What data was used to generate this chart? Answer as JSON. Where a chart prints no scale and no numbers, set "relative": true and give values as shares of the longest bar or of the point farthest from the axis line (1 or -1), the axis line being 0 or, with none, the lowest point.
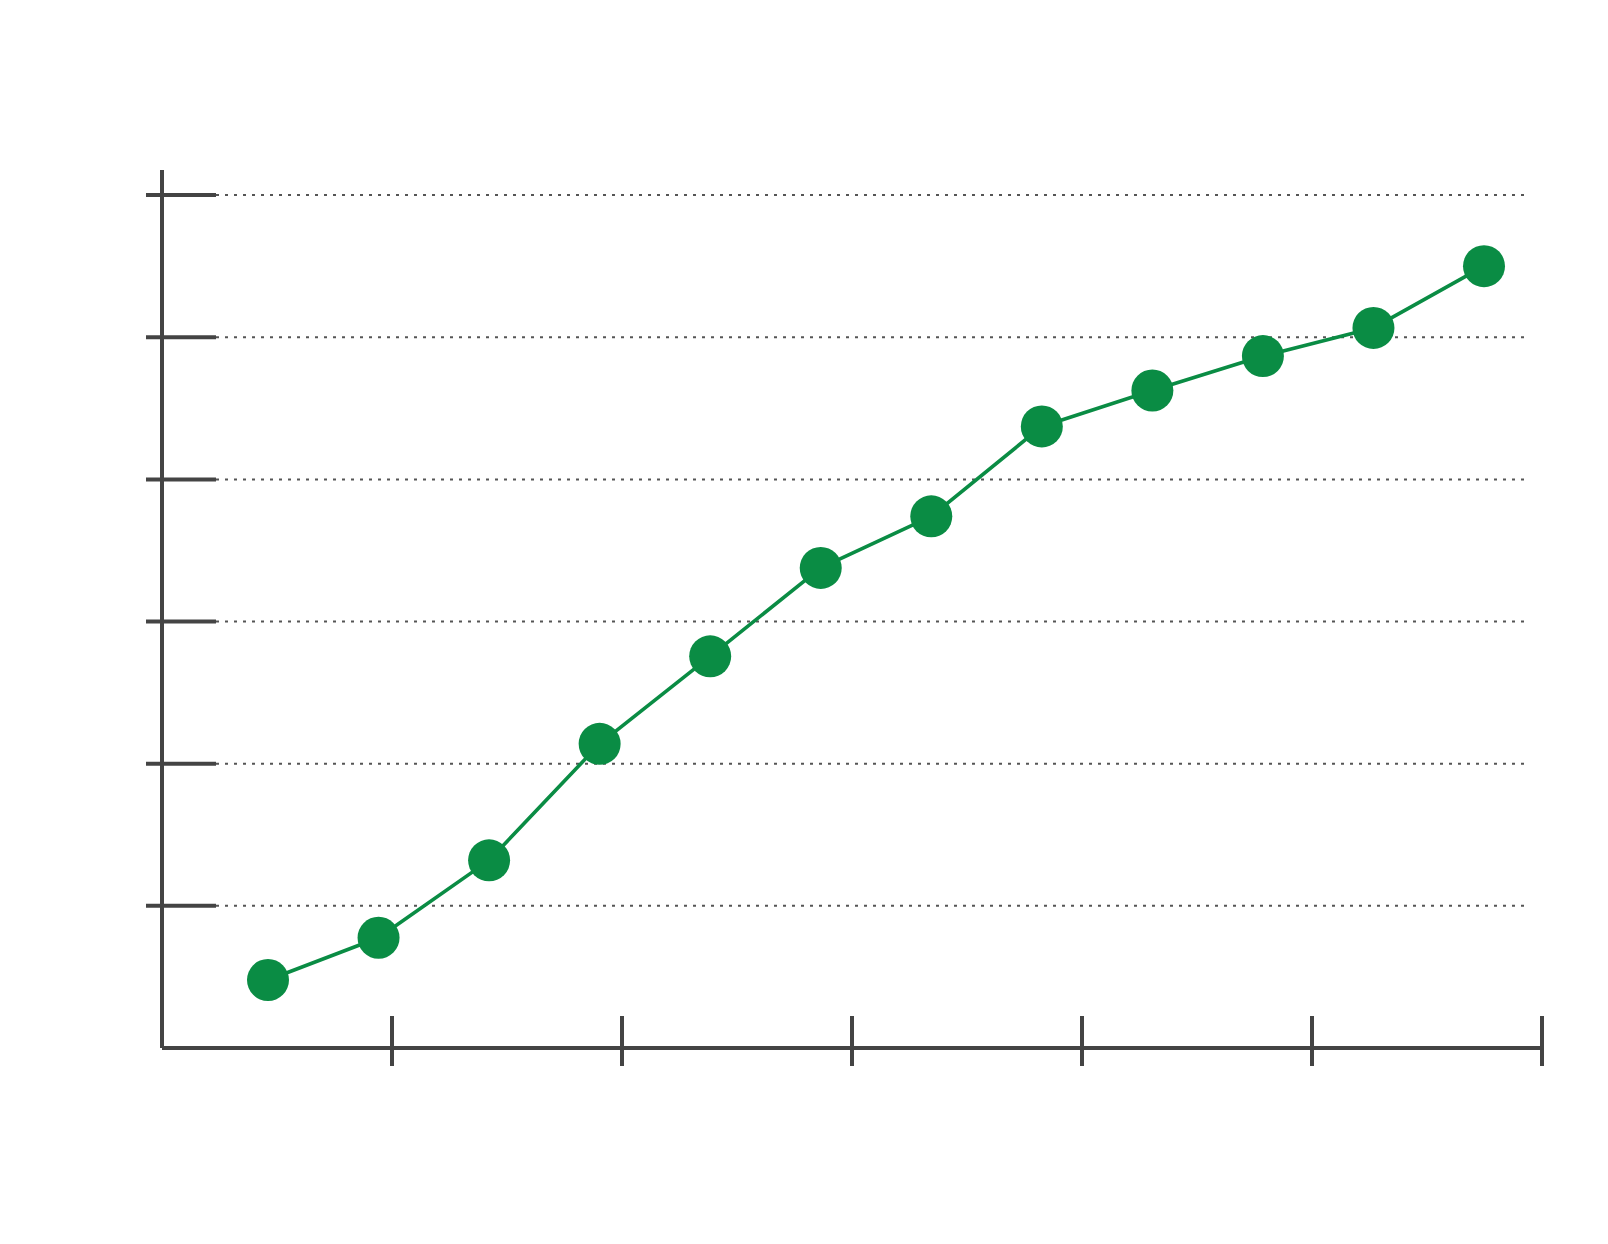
{
  "chart_data": {
    "type": "line",
    "relative": true,
    "categories": [
      null,
      null,
      null,
      null,
      null,
      null,
      null,
      null,
      null,
      null,
      null,
      null
    ],
    "grid": "y",
    "marker": "circle",
    "line_style": "solid",
    "series": [
      {
        "color": "#0a8c44",
        "values": [
          0.087,
          0.141,
          0.24,
          0.389,
          0.501,
          0.614,
          0.68,
          0.795,
          0.841,
          0.885,
          0.921,
          1
        ]
      }
    ]
  }
}
